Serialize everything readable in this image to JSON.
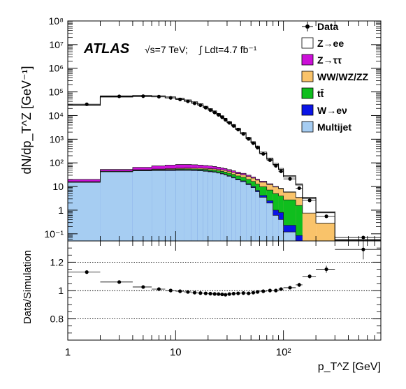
{
  "chart_data": [
    {
      "type": "histogram-stacked",
      "panel": "main",
      "experiment_label": "ATLAS",
      "energy_label": "√s=7 TeV;",
      "lumi_label": "∫ Ldt=4.7 fb⁻¹",
      "ylabel": "dN/dp_T^Z [GeV⁻¹]",
      "y_scale": "log",
      "ylim": [
        0.05,
        100000000
      ],
      "x_scale": "log",
      "xlim": [
        1,
        800
      ],
      "ytick_labels": [
        "10⁻¹",
        "1",
        "10",
        "10²",
        "10³",
        "10⁴",
        "10⁵",
        "10⁶",
        "10⁷",
        "10⁸"
      ],
      "bin_edges": [
        1,
        2,
        4,
        6,
        8,
        10,
        12,
        14,
        16,
        18,
        20,
        22,
        24,
        26,
        28,
        30,
        33,
        36,
        40,
        45,
        50,
        55,
        60,
        70,
        80,
        90,
        100,
        130,
        150,
        200,
        300,
        800
      ],
      "series": [
        {
          "name": "Multijet",
          "color": "#a6cdf2",
          "values": [
            15,
            42,
            46,
            47,
            47,
            48,
            48,
            47,
            46,
            44,
            42,
            40,
            37,
            34,
            31,
            27,
            23,
            19,
            16,
            12,
            9,
            6,
            3.5,
            2,
            0.6,
            0.4,
            0.12,
            0.035,
            0,
            0,
            0
          ]
        },
        {
          "name": "W→eν",
          "color": "#0a14e6",
          "values": [
            0.4,
            1.2,
            2,
            2.5,
            3,
            3,
            3,
            3,
            2.8,
            2.6,
            2.4,
            2.2,
            2,
            1.9,
            1.8,
            1.7,
            1.6,
            1.5,
            1.3,
            1.1,
            1.0,
            0.8,
            0.7,
            0.5,
            0.4,
            0.4,
            0.11,
            0.05,
            0,
            0,
            0
          ]
        },
        {
          "name": "tt̄",
          "color": "#0fbe1e",
          "values": [
            0.1,
            0.4,
            1,
            2,
            3,
            4,
            4.5,
            5,
            5.5,
            6,
            6.5,
            7,
            7.5,
            7.8,
            8,
            8,
            7.8,
            7.5,
            7.3,
            7,
            6.5,
            6,
            5.5,
            4.6,
            4,
            3.2,
            2.5,
            1.5,
            0,
            0,
            0
          ]
        },
        {
          "name": "WW/WZ/ZZ",
          "color": "#f9c36a",
          "values": [
            0.5,
            1,
            2,
            3,
            4,
            4.5,
            5,
            5.2,
            5.5,
            5.8,
            6,
            6.2,
            6.5,
            6.8,
            7,
            7.2,
            7,
            7,
            6.8,
            6.5,
            6.2,
            5.8,
            5.5,
            5,
            4.5,
            4,
            3,
            1.8,
            0.75,
            0.28,
            0
          ]
        },
        {
          "name": "Z→ττ",
          "color": "#cc10d8",
          "values": [
            4,
            8,
            14,
            20,
            24,
            26,
            25,
            23,
            21,
            19,
            17,
            15,
            13,
            11,
            9.5,
            8,
            6.5,
            5.5,
            4.5,
            3.5,
            2.6,
            2,
            1.5,
            1,
            0.6,
            0.4,
            0.2,
            0.1,
            0,
            0,
            0
          ]
        },
        {
          "name": "Z→ee",
          "color": "#ffffff",
          "values": [
            27000,
            61000,
            64000,
            62000,
            56000,
            49000,
            41000,
            34000,
            28000,
            22000,
            17500,
            14000,
            11000,
            8700,
            6800,
            5000,
            3700,
            2600,
            1700,
            1050,
            680,
            440,
            240,
            130,
            75,
            44,
            20,
            8.2,
            2.4,
            0.5,
            0.053
          ]
        },
        {
          "name": "Data",
          "color": "#000000",
          "x": [
            1.5,
            3,
            5,
            7,
            9,
            11,
            13,
            15,
            17,
            19,
            21,
            23,
            25,
            27,
            29,
            31.5,
            34.5,
            38,
            42.5,
            47.5,
            52.5,
            57.5,
            65,
            75,
            85,
            95,
            115,
            140,
            175,
            250,
            550
          ],
          "values": [
            30000,
            65000,
            66000,
            63000,
            56000,
            48000,
            40000,
            33000,
            27500,
            21500,
            17000,
            13500,
            10700,
            8500,
            6600,
            4900,
            3650,
            2550,
            1670,
            1030,
            680,
            440,
            240,
            130,
            75,
            44,
            21,
            8.5,
            2.6,
            0.55,
            0.07
          ]
        }
      ],
      "legend_order": [
        "Data",
        "Z→ee",
        "Z→ττ",
        "WW/WZ/ZZ",
        "tt̄",
        "W→eν",
        "Multijet"
      ],
      "legend_position": "top-right"
    },
    {
      "type": "scatter",
      "panel": "ratio",
      "ylabel": "Data/Simulation",
      "xlabel": "p_T^Z [GeV]",
      "x_scale": "log",
      "xlim": [
        1,
        800
      ],
      "ylim": [
        0.65,
        1.35
      ],
      "ytick_labels": [
        "0.8",
        "1",
        "1.2"
      ],
      "xtick_labels": [
        "1",
        "10",
        "10²"
      ],
      "reference_lines": [
        0.8,
        1.0,
        1.2
      ],
      "x": [
        1.5,
        3,
        5,
        7,
        9,
        11,
        13,
        15,
        17,
        19,
        21,
        23,
        25,
        27,
        29,
        31.5,
        34.5,
        38,
        42.5,
        47.5,
        52.5,
        57.5,
        65,
        75,
        85,
        95,
        115,
        140,
        175,
        250,
        550
      ],
      "x_err": [
        [
          1,
          2
        ],
        [
          2,
          4
        ],
        [
          4,
          6
        ],
        [
          6,
          8
        ],
        [
          8,
          10
        ],
        [
          10,
          12
        ],
        [
          12,
          14
        ],
        [
          14,
          16
        ],
        [
          16,
          18
        ],
        [
          18,
          20
        ],
        [
          20,
          22
        ],
        [
          22,
          24
        ],
        [
          24,
          26
        ],
        [
          26,
          28
        ],
        [
          28,
          30
        ],
        [
          30,
          33
        ],
        [
          33,
          36
        ],
        [
          36,
          40
        ],
        [
          40,
          45
        ],
        [
          45,
          50
        ],
        [
          50,
          55
        ],
        [
          55,
          60
        ],
        [
          60,
          70
        ],
        [
          70,
          80
        ],
        [
          80,
          90
        ],
        [
          90,
          100
        ],
        [
          100,
          130
        ],
        [
          130,
          150
        ],
        [
          150,
          200
        ],
        [
          200,
          300
        ],
        [
          300,
          800
        ]
      ],
      "values": [
        1.13,
        1.06,
        1.025,
        1.01,
        1.0,
        0.995,
        0.99,
        0.985,
        0.982,
        0.98,
        0.978,
        0.976,
        0.975,
        0.973,
        0.97,
        0.975,
        0.978,
        0.98,
        0.982,
        0.98,
        0.985,
        0.99,
        0.995,
        1.0,
        1.0,
        1.01,
        1.02,
        1.04,
        1.1,
        1.15,
        1.29
      ],
      "y_err": [
        0.004,
        0.003,
        0.003,
        0.003,
        0.003,
        0.003,
        0.003,
        0.003,
        0.003,
        0.003,
        0.003,
        0.003,
        0.003,
        0.003,
        0.003,
        0.003,
        0.003,
        0.004,
        0.004,
        0.004,
        0.005,
        0.006,
        0.006,
        0.008,
        0.009,
        0.011,
        0.01,
        0.015,
        0.015,
        0.025,
        0.07
      ]
    }
  ]
}
